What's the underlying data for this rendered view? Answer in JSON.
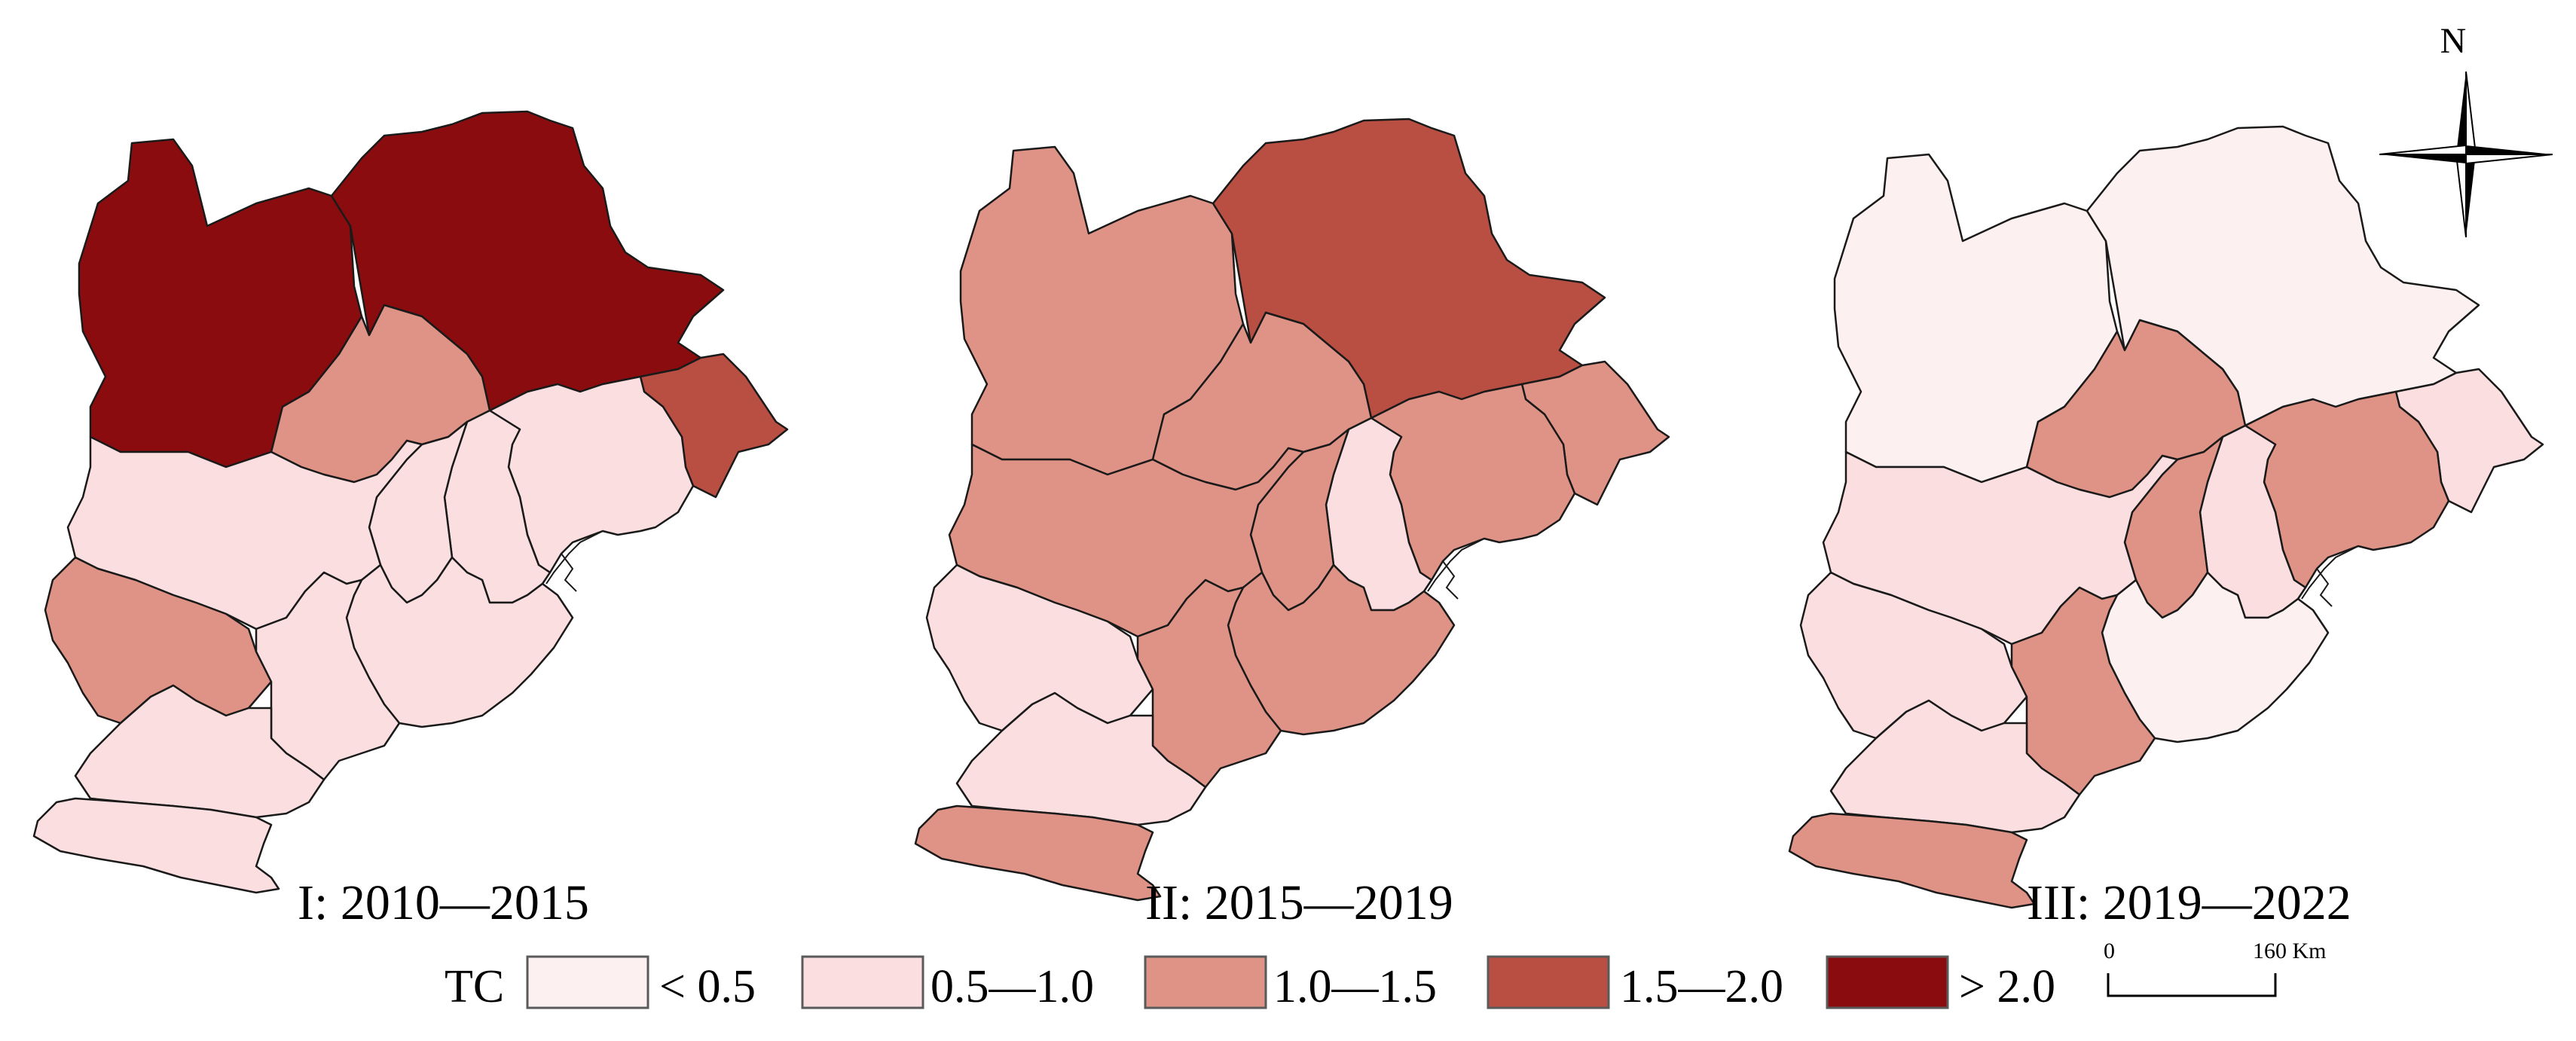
{
  "panels": [
    {
      "label": "I: 2010—2015",
      "regions": {
        "zhangjiakou": "> 2.0",
        "chengde": "> 2.0",
        "beijing": "1.0—1.5",
        "qinhuangdao": "1.5—2.0",
        "tangshan": "0.5—1.0",
        "tianjin": "0.5—1.0",
        "langfang": "0.5—1.0",
        "baoding": "0.5—1.0",
        "cangzhou": "0.5—1.0",
        "shijiazhuang": "1.0—1.5",
        "hengshui": "0.5—1.0",
        "xingtai": "0.5—1.0",
        "handan": "0.5—1.0"
      }
    },
    {
      "label": "II: 2015—2019",
      "regions": {
        "zhangjiakou": "1.0—1.5",
        "chengde": "1.5—2.0",
        "beijing": "1.0—1.5",
        "qinhuangdao": "1.0—1.5",
        "tangshan": "1.0—1.5",
        "tianjin": "0.5—1.0",
        "langfang": "1.0—1.5",
        "baoding": "1.0—1.5",
        "cangzhou": "1.0—1.5",
        "shijiazhuang": "0.5—1.0",
        "hengshui": "1.0—1.5",
        "xingtai": "0.5—1.0",
        "handan": "1.0—1.5"
      }
    },
    {
      "label": "III: 2019—2022",
      "regions": {
        "zhangjiakou": "< 0.5",
        "chengde": "< 0.5",
        "beijing": "1.0—1.5",
        "qinhuangdao": "0.5—1.0",
        "tangshan": "1.0—1.5",
        "tianjin": "0.5—1.0",
        "langfang": "1.0—1.5",
        "baoding": "0.5—1.0",
        "cangzhou": "< 0.5",
        "shijiazhuang": "0.5—1.0",
        "hengshui": "1.0—1.5",
        "xingtai": "0.5—1.0",
        "handan": "1.0—1.5"
      }
    }
  ],
  "legend": {
    "title": "TC",
    "classes": [
      {
        "label": "< 0.5",
        "color": "#fdf0f0"
      },
      {
        "label": "0.5—1.0",
        "color": "#fbdfe0"
      },
      {
        "label": "1.0—1.5",
        "color": "#df9386"
      },
      {
        "label": "1.5—2.0",
        "color": "#b94e42"
      },
      {
        "label": "> 2.0",
        "color": "#8b0c0e"
      }
    ]
  },
  "scale_bar": {
    "start": "0",
    "end": "160 Km"
  },
  "north_arrow": {
    "label": "N",
    "icon": "north-arrow-icon"
  }
}
